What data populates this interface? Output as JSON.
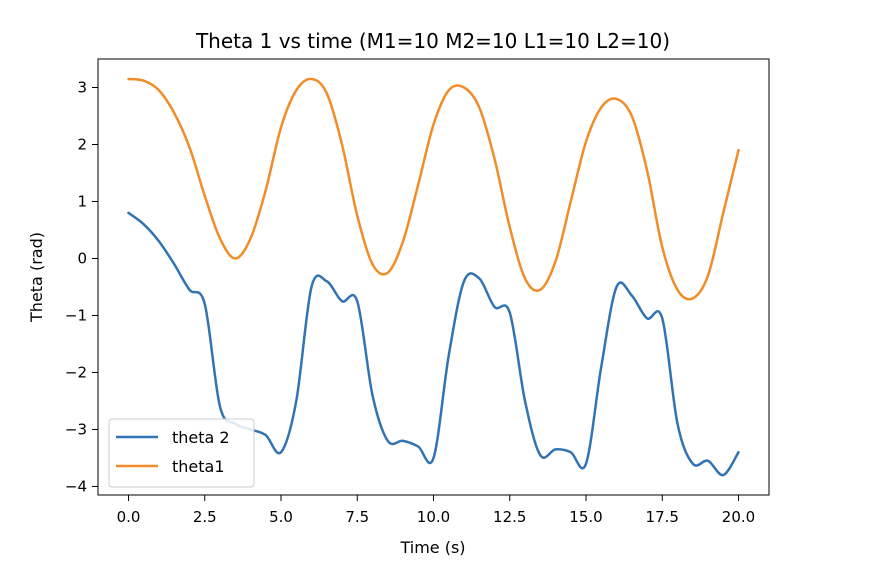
{
  "chart_data": {
    "type": "line",
    "title": "Theta 1 vs time (M1=10 M2=10 L1=10 L2=10)",
    "xlabel": "Time (s)",
    "ylabel": "Theta  (rad)",
    "xlim": [
      -1.0,
      21.0
    ],
    "ylim": [
      -4.15,
      3.5
    ],
    "xticks": [
      0.0,
      2.5,
      5.0,
      7.5,
      10.0,
      12.5,
      15.0,
      17.5,
      20.0
    ],
    "xtick_labels": [
      "0.0",
      "2.5",
      "5.0",
      "7.5",
      "10.0",
      "12.5",
      "15.0",
      "17.5",
      "20.0"
    ],
    "yticks": [
      -4,
      -3,
      -2,
      -1,
      0,
      1,
      2,
      3
    ],
    "ytick_labels": [
      "−4",
      "−3",
      "−2",
      "−1",
      "0",
      "1",
      "2",
      "3"
    ],
    "grid": false,
    "legend_position": "lower-left",
    "series": [
      {
        "name": "theta 2",
        "color": "#3274b3",
        "x": [
          0.0,
          0.5,
          1.0,
          1.5,
          2.0,
          2.5,
          3.0,
          3.5,
          4.0,
          4.5,
          5.0,
          5.5,
          6.0,
          6.5,
          7.0,
          7.5,
          8.0,
          8.5,
          9.0,
          9.5,
          10.0,
          10.5,
          11.0,
          11.5,
          12.0,
          12.5,
          13.0,
          13.5,
          14.0,
          14.5,
          15.0,
          15.5,
          16.0,
          16.5,
          17.0,
          17.5,
          18.0,
          18.5,
          19.0,
          19.5,
          20.0
        ],
        "y": [
          0.8,
          0.6,
          0.3,
          -0.1,
          -0.55,
          -0.8,
          -2.6,
          -2.9,
          -3.0,
          -3.1,
          -3.4,
          -2.5,
          -0.5,
          -0.4,
          -0.75,
          -0.75,
          -2.4,
          -3.2,
          -3.2,
          -3.3,
          -3.5,
          -1.7,
          -0.4,
          -0.35,
          -0.85,
          -0.95,
          -2.5,
          -3.45,
          -3.35,
          -3.4,
          -3.6,
          -1.9,
          -0.5,
          -0.65,
          -1.05,
          -1.05,
          -2.9,
          -3.6,
          -3.55,
          -3.8,
          -3.4
        ]
      },
      {
        "name": "theta1",
        "color": "#f28c28",
        "x": [
          0.0,
          0.5,
          1.0,
          1.5,
          2.0,
          2.5,
          3.0,
          3.5,
          4.0,
          4.5,
          5.0,
          5.5,
          6.0,
          6.5,
          7.0,
          7.5,
          8.0,
          8.5,
          9.0,
          9.5,
          10.0,
          10.5,
          11.0,
          11.5,
          12.0,
          12.5,
          13.0,
          13.5,
          14.0,
          14.5,
          15.0,
          15.5,
          16.0,
          16.5,
          17.0,
          17.5,
          18.0,
          18.5,
          19.0,
          19.5,
          20.0
        ],
        "y": [
          3.15,
          3.12,
          2.95,
          2.55,
          1.95,
          1.1,
          0.35,
          0.0,
          0.35,
          1.2,
          2.3,
          2.95,
          3.15,
          2.9,
          2.0,
          0.75,
          -0.1,
          -0.25,
          0.3,
          1.3,
          2.35,
          2.95,
          3.0,
          2.65,
          1.75,
          0.55,
          -0.35,
          -0.55,
          -0.05,
          1.0,
          2.05,
          2.65,
          2.8,
          2.5,
          1.55,
          0.2,
          -0.55,
          -0.7,
          -0.3,
          0.8,
          1.9
        ]
      }
    ]
  }
}
